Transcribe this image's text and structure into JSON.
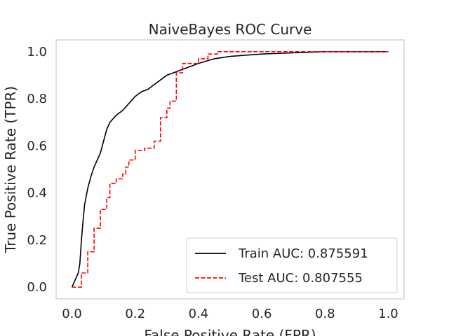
{
  "chart_data": {
    "type": "line",
    "title": "NaiveBayes ROC Curve",
    "xlabel": "False Positive Rate (FPR)",
    "ylabel": "True Positive Rate (TPR)",
    "xlim": [
      -0.05,
      1.05
    ],
    "ylim": [
      -0.05,
      1.05
    ],
    "xticks": [
      "0.0",
      "0.2",
      "0.4",
      "0.6",
      "0.8",
      "1.0"
    ],
    "yticks": [
      "0.0",
      "0.2",
      "0.4",
      "0.6",
      "0.8",
      "1.0"
    ],
    "grid": false,
    "legend_position": "lower-right",
    "series": [
      {
        "name": "Train AUC: 0.875591",
        "color": "#000000",
        "style": "solid",
        "x": [
          0.0,
          0.01,
          0.02,
          0.025,
          0.03,
          0.035,
          0.04,
          0.05,
          0.06,
          0.07,
          0.08,
          0.09,
          0.1,
          0.11,
          0.12,
          0.14,
          0.16,
          0.18,
          0.2,
          0.22,
          0.24,
          0.26,
          0.28,
          0.3,
          0.32,
          0.34,
          0.36,
          0.4,
          0.45,
          0.5,
          0.55,
          0.6,
          0.7,
          0.8,
          0.9,
          1.0
        ],
        "y": [
          0.0,
          0.03,
          0.06,
          0.1,
          0.2,
          0.28,
          0.35,
          0.42,
          0.47,
          0.51,
          0.54,
          0.57,
          0.62,
          0.67,
          0.7,
          0.73,
          0.75,
          0.78,
          0.81,
          0.83,
          0.84,
          0.86,
          0.88,
          0.9,
          0.91,
          0.92,
          0.93,
          0.95,
          0.97,
          0.98,
          0.985,
          0.99,
          0.995,
          1.0,
          1.0,
          1.0
        ]
      },
      {
        "name": "Test AUC: 0.807555",
        "color": "#ff0000",
        "style": "dashed",
        "x": [
          0.0,
          0.0,
          0.03,
          0.03,
          0.05,
          0.05,
          0.07,
          0.07,
          0.09,
          0.09,
          0.11,
          0.11,
          0.12,
          0.12,
          0.14,
          0.14,
          0.16,
          0.16,
          0.17,
          0.17,
          0.18,
          0.18,
          0.2,
          0.2,
          0.23,
          0.23,
          0.26,
          0.26,
          0.28,
          0.28,
          0.3,
          0.3,
          0.31,
          0.31,
          0.33,
          0.33,
          0.35,
          0.35,
          0.37,
          0.37,
          0.4,
          0.4,
          0.43,
          0.43,
          0.46,
          0.46,
          1.0
        ],
        "y": [
          0.0,
          0.0,
          0.0,
          0.06,
          0.06,
          0.15,
          0.15,
          0.25,
          0.25,
          0.33,
          0.33,
          0.38,
          0.38,
          0.44,
          0.44,
          0.46,
          0.46,
          0.48,
          0.48,
          0.51,
          0.51,
          0.54,
          0.54,
          0.58,
          0.58,
          0.59,
          0.59,
          0.62,
          0.62,
          0.72,
          0.72,
          0.76,
          0.76,
          0.79,
          0.79,
          0.91,
          0.91,
          0.95,
          0.95,
          0.95,
          0.95,
          0.97,
          0.97,
          0.99,
          0.99,
          1.0,
          1.0
        ]
      }
    ]
  }
}
